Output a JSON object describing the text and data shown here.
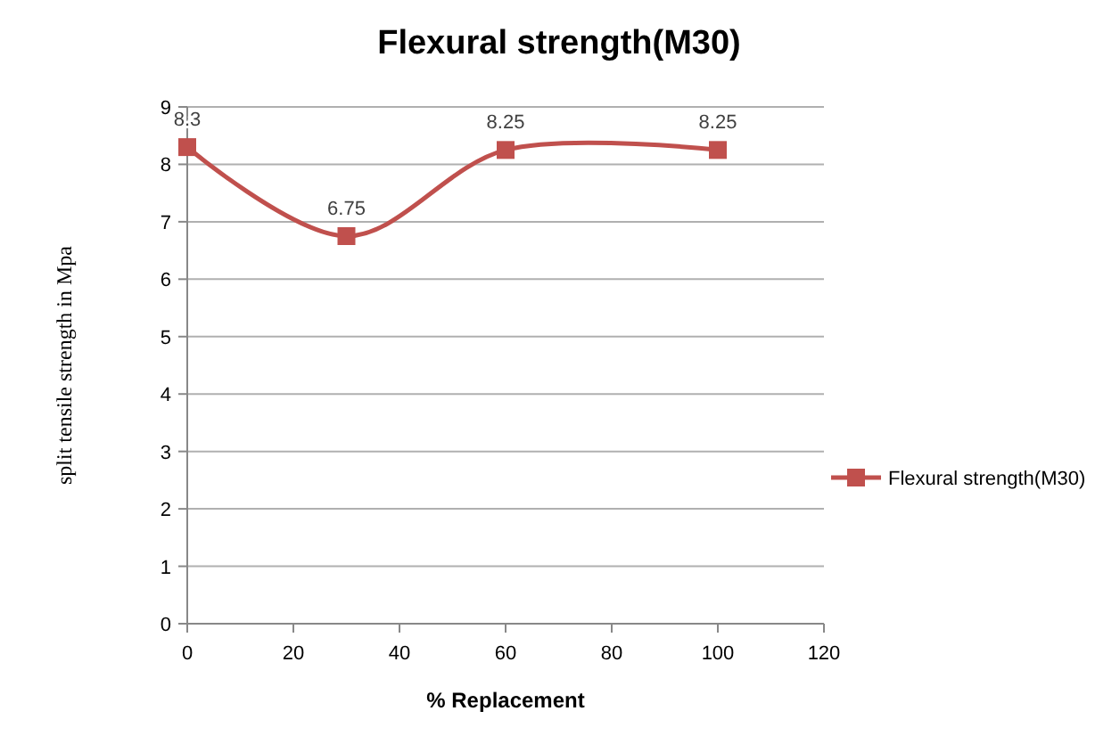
{
  "chart_data": {
    "type": "line",
    "title": "Flexural strength(M30)",
    "xlabel": "% Replacement",
    "ylabel": "split tensile strength in Mpa",
    "x": [
      0,
      30,
      60,
      100
    ],
    "series": [
      {
        "name": "Flexural strength(M30)",
        "color": "#c0504d",
        "values": [
          8.3,
          6.75,
          8.25,
          8.25
        ]
      }
    ],
    "xlim": [
      0,
      120
    ],
    "xticks": [
      0,
      20,
      40,
      60,
      80,
      100,
      120
    ],
    "ylim": [
      0,
      9
    ],
    "yticks": [
      0,
      1,
      2,
      3,
      4,
      5,
      6,
      7,
      8,
      9
    ],
    "grid": "y",
    "legend": "right",
    "marker": "square",
    "line_style": "solid",
    "data_labels": true
  }
}
